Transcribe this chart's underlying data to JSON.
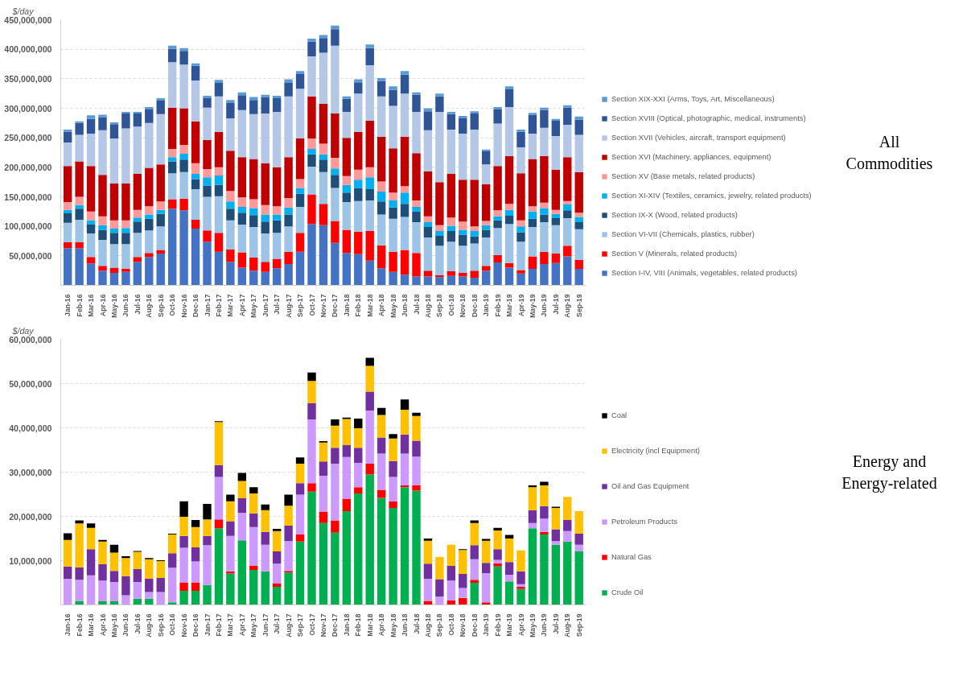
{
  "chart_data": [
    {
      "type": "bar",
      "annotations": [
        "All Commodities"
      ],
      "ylabel": "$/day",
      "stacked": true,
      "grid": "y",
      "legend": "right",
      "categories": [
        "Jan-16",
        "Feb-16",
        "Mar-16",
        "Apr-16",
        "May-16",
        "Jun-16",
        "Jul-16",
        "Aug-16",
        "Sep-16",
        "Oct-16",
        "Nov-16",
        "Dec-16",
        "Jan-17",
        "Feb-17",
        "Mar-17",
        "Apr-17",
        "May-17",
        "Jun-17",
        "Jul-17",
        "Aug-17",
        "Sep-17",
        "Oct-17",
        "Nov-17",
        "Dec-17",
        "Jan-18",
        "Feb-18",
        "Mar-18",
        "Apr-18",
        "May-18",
        "Jun-18",
        "Jul-18",
        "Aug-18",
        "Sep-18",
        "Oct-18",
        "Nov-18",
        "Dec-18",
        "Jan-19",
        "Feb-19",
        "Mar-19",
        "Apr-19",
        "May-19",
        "Jun-19",
        "Jul-19",
        "Aug-19",
        "Sep-19"
      ],
      "ylim": [
        0,
        450000000.0
      ],
      "yticks": [
        {
          "value": 50000000.0,
          "label": "50,000,000"
        },
        {
          "value": 100000000.0,
          "label": "100,000,000"
        },
        {
          "value": 150000000.0,
          "label": "150,000,000"
        },
        {
          "value": 200000000.0,
          "label": "200,000,000"
        },
        {
          "value": 250000000.0,
          "label": "250,000,000"
        },
        {
          "value": 300000000.0,
          "label": "300,000,000"
        },
        {
          "value": 350000000.0,
          "label": "350,000,000"
        },
        {
          "value": 400000000.0,
          "label": "400,000,000"
        },
        {
          "value": 450000000.0,
          "label": "450,000,000"
        }
      ],
      "series": [
        {
          "name": "Section I-IV, VIII (Animals, vegetables, related products)",
          "color": "#4472c4",
          "values": [
            63000000.0,
            63000000.0,
            37000000.0,
            25000000.0,
            21000000.0,
            23000000.0,
            40000000.0,
            48000000.0,
            54000000.0,
            130000000.0,
            127000000.0,
            96000000.0,
            74000000.0,
            57000000.0,
            40000000.0,
            30000000.0,
            25000000.0,
            23000000.0,
            29000000.0,
            36000000.0,
            57000000.0,
            104000000.0,
            102000000.0,
            72000000.0,
            55000000.0,
            53000000.0,
            42000000.0,
            29000000.0,
            23000000.0,
            18000000.0,
            15000000.0,
            15000000.0,
            14000000.0,
            16000000.0,
            15000000.0,
            13000000.0,
            25000000.0,
            39000000.0,
            30000000.0,
            20000000.0,
            28000000.0,
            36000000.0,
            38000000.0,
            49000000.0,
            28000000.0
          ]
        },
        {
          "name": "Section V (Minerals, related products)",
          "color": "#ff0000",
          "values": [
            10000000.0,
            10000000.0,
            11000000.0,
            8000000.0,
            9000000.0,
            5000000.0,
            8000000.0,
            7000000.0,
            6000000.0,
            16000000.0,
            20000000.0,
            15000000.0,
            19000000.0,
            32000000.0,
            21000000.0,
            26000000.0,
            22000000.0,
            17000000.0,
            16000000.0,
            21000000.0,
            32000000.0,
            50000000.0,
            36000000.0,
            37000000.0,
            39000000.0,
            38000000.0,
            50000000.0,
            39000000.0,
            34000000.0,
            42000000.0,
            40000000.0,
            10000000.0,
            3000000.0,
            8000000.0,
            6000000.0,
            12000000.0,
            8000000.0,
            12000000.0,
            8000000.0,
            6000000.0,
            21000000.0,
            21000000.0,
            16000000.0,
            18000000.0,
            15000000.0
          ]
        },
        {
          "name": "Section VI-VII (Chemicals, plastics, rubber)",
          "color": "#9dc3e6",
          "values": [
            33000000.0,
            38000000.0,
            40000000.0,
            44000000.0,
            40000000.0,
            42000000.0,
            41000000.0,
            38000000.0,
            40000000.0,
            44000000.0,
            45000000.0,
            52000000.0,
            57000000.0,
            62000000.0,
            49000000.0,
            47000000.0,
            52000000.0,
            48000000.0,
            44000000.0,
            43000000.0,
            44000000.0,
            47000000.0,
            54000000.0,
            56000000.0,
            47000000.0,
            52000000.0,
            52000000.0,
            52000000.0,
            56000000.0,
            56000000.0,
            52000000.0,
            56000000.0,
            50000000.0,
            50000000.0,
            46000000.0,
            46000000.0,
            48000000.0,
            46000000.0,
            66000000.0,
            48000000.0,
            50000000.0,
            50000000.0,
            48000000.0,
            47000000.0,
            52000000.0
          ]
        },
        {
          "name": "Section IX-X (Wood, related products)",
          "color": "#1f4e79",
          "values": [
            16000000.0,
            19000000.0,
            15000000.0,
            17000000.0,
            19000000.0,
            19000000.0,
            19000000.0,
            20000000.0,
            21000000.0,
            20000000.0,
            21000000.0,
            17000000.0,
            19000000.0,
            19000000.0,
            20000000.0,
            20000000.0,
            20000000.0,
            20000000.0,
            21000000.0,
            20000000.0,
            22000000.0,
            21000000.0,
            21000000.0,
            22000000.0,
            16000000.0,
            22000000.0,
            19000000.0,
            22000000.0,
            19000000.0,
            22000000.0,
            18000000.0,
            18000000.0,
            17000000.0,
            18000000.0,
            19000000.0,
            12000000.0,
            13000000.0,
            13000000.0,
            14000000.0,
            16000000.0,
            14000000.0,
            13000000.0,
            12000000.0,
            13000000.0,
            12000000.0
          ]
        },
        {
          "name": "Section XI-XIV (Textiles, ceramics, jewelry, related products)",
          "color": "#00b0f0",
          "values": [
            6000000.0,
            6000000.0,
            7000000.0,
            8000000.0,
            7000000.0,
            8000000.0,
            7000000.0,
            7000000.0,
            7000000.0,
            7000000.0,
            10000000.0,
            9000000.0,
            14000000.0,
            16000000.0,
            12000000.0,
            10000000.0,
            12000000.0,
            12000000.0,
            10000000.0,
            12000000.0,
            10000000.0,
            9000000.0,
            9000000.0,
            11000000.0,
            13000000.0,
            14000000.0,
            20000000.0,
            17000000.0,
            12000000.0,
            19000000.0,
            8000000.0,
            8000000.0,
            8000000.0,
            9000000.0,
            8000000.0,
            9000000.0,
            8000000.0,
            7000000.0,
            10000000.0,
            10000000.0,
            12000000.0,
            11000000.0,
            7000000.0,
            10000000.0,
            9000000.0
          ]
        },
        {
          "name": "Section XV (Base metals, related products)",
          "color": "#ff9999",
          "values": [
            13000000.0,
            14000000.0,
            15000000.0,
            15000000.0,
            14000000.0,
            13000000.0,
            13000000.0,
            14000000.0,
            14000000.0,
            14000000.0,
            15000000.0,
            18000000.0,
            14000000.0,
            14000000.0,
            18000000.0,
            16000000.0,
            15000000.0,
            16000000.0,
            14000000.0,
            16000000.0,
            15000000.0,
            18000000.0,
            18000000.0,
            18000000.0,
            15000000.0,
            17000000.0,
            17000000.0,
            17000000.0,
            13000000.0,
            11000000.0,
            11000000.0,
            10000000.0,
            10000000.0,
            14000000.0,
            14000000.0,
            8000000.0,
            7000000.0,
            10000000.0,
            10000000.0,
            10000000.0,
            9000000.0,
            9000000.0,
            7000000.0,
            6000000.0,
            7000000.0
          ]
        },
        {
          "name": "Section XVI (Machinery, appliances, equipment)",
          "color": "#c00000",
          "values": [
            61000000.0,
            60000000.0,
            77000000.0,
            70000000.0,
            63000000.0,
            63000000.0,
            61000000.0,
            65000000.0,
            63000000.0,
            70000000.0,
            62000000.0,
            71000000.0,
            49000000.0,
            60000000.0,
            68000000.0,
            68000000.0,
            68000000.0,
            71000000.0,
            66000000.0,
            69000000.0,
            69000000.0,
            71000000.0,
            68000000.0,
            75000000.0,
            65000000.0,
            64000000.0,
            79000000.0,
            76000000.0,
            75000000.0,
            84000000.0,
            80000000.0,
            76000000.0,
            73000000.0,
            74000000.0,
            71000000.0,
            79000000.0,
            62000000.0,
            75000000.0,
            81000000.0,
            80000000.0,
            80000000.0,
            79000000.0,
            68000000.0,
            74000000.0,
            69000000.0
          ]
        },
        {
          "name": "Section XVII (Vehicles, aircraft, transport equipment)",
          "color": "#b4c7e7",
          "values": [
            40000000.0,
            45000000.0,
            55000000.0,
            76000000.0,
            76000000.0,
            93000000.0,
            80000000.0,
            76000000.0,
            85000000.0,
            77000000.0,
            74000000.0,
            69000000.0,
            55000000.0,
            60000000.0,
            55000000.0,
            80000000.0,
            76000000.0,
            84000000.0,
            94000000.0,
            103000000.0,
            84000000.0,
            68000000.0,
            86000000.0,
            115000000.0,
            44000000.0,
            65000000.0,
            94000000.0,
            68000000.0,
            72000000.0,
            73000000.0,
            70000000.0,
            70000000.0,
            119000000.0,
            75000000.0,
            78000000.0,
            85000000.0,
            34000000.0,
            72000000.0,
            83000000.0,
            44000000.0,
            43000000.0,
            48000000.0,
            57000000.0,
            55000000.0,
            63000000.0
          ]
        },
        {
          "name": "Section XVIII (Optical, photographic, medical, instruments)",
          "color": "#2f5597",
          "values": [
            18000000.0,
            20000000.0,
            25000000.0,
            22000000.0,
            24000000.0,
            25000000.0,
            22000000.0,
            23000000.0,
            23000000.0,
            23000000.0,
            23000000.0,
            25000000.0,
            16000000.0,
            23000000.0,
            26000000.0,
            25000000.0,
            24000000.0,
            28000000.0,
            23000000.0,
            23000000.0,
            25000000.0,
            25000000.0,
            25000000.0,
            28000000.0,
            22000000.0,
            19000000.0,
            29000000.0,
            26000000.0,
            27000000.0,
            32000000.0,
            29000000.0,
            32000000.0,
            26000000.0,
            26000000.0,
            26000000.0,
            27000000.0,
            22000000.0,
            24000000.0,
            30000000.0,
            26000000.0,
            32000000.0,
            30000000.0,
            26000000.0,
            29000000.0,
            26000000.0
          ]
        },
        {
          "name": "Section XIX-XXI (Arms, Toys, Art, Miscellaneous)",
          "color": "#5b9bd5",
          "values": [
            4000000.0,
            3000000.0,
            6000000.0,
            4000000.0,
            3000000.0,
            3000000.0,
            3000000.0,
            4000000.0,
            4000000.0,
            5000000.0,
            5000000.0,
            4000000.0,
            4000000.0,
            5000000.0,
            5000000.0,
            5000000.0,
            5000000.0,
            4000000.0,
            4000000.0,
            6000000.0,
            5000000.0,
            5000000.0,
            5000000.0,
            6000000.0,
            4000000.0,
            5000000.0,
            6000000.0,
            5000000.0,
            6000000.0,
            6000000.0,
            4000000.0,
            5000000.0,
            5000000.0,
            4000000.0,
            4000000.0,
            4000000.0,
            3000000.0,
            4000000.0,
            5000000.0,
            4000000.0,
            3000000.0,
            4000000.0,
            3000000.0,
            4000000.0,
            5000000.0
          ]
        }
      ]
    },
    {
      "type": "bar",
      "annotations": [
        "Energy and Energy-related"
      ],
      "ylabel": "$/day",
      "stacked": true,
      "grid": "y",
      "legend": "right",
      "categories": [
        "Jan-16",
        "Feb-16",
        "Mar-16",
        "Apr-16",
        "May-16",
        "Jun-16",
        "Jul-16",
        "Aug-16",
        "Sep-16",
        "Oct-16",
        "Nov-16",
        "Dec-16",
        "Jan-17",
        "Feb-17",
        "Mar-17",
        "Apr-17",
        "May-17",
        "Jun-17",
        "Jul-17",
        "Aug-17",
        "Sep-17",
        "Oct-17",
        "Nov-17",
        "Dec-17",
        "Jan-18",
        "Feb-18",
        "Mar-18",
        "Apr-18",
        "May-18",
        "Jun-18",
        "Jul-18",
        "Aug-18",
        "Sep-18",
        "Oct-18",
        "Nov-18",
        "Dec-18",
        "Jan-19",
        "Feb-19",
        "Mar-19",
        "Apr-19",
        "May-19",
        "Jun-19",
        "Jul-19",
        "Aug-19",
        "Sep-19"
      ],
      "ylim": [
        0,
        60000000.0
      ],
      "yticks": [
        {
          "value": 10000000.0,
          "label": "10,000,000"
        },
        {
          "value": 20000000.0,
          "label": "20,000,000"
        },
        {
          "value": 30000000.0,
          "label": "30,000,000"
        },
        {
          "value": 40000000.0,
          "label": "40,000,000"
        },
        {
          "value": 50000000.0,
          "label": "50,000,000"
        },
        {
          "value": 60000000.0,
          "label": "60,000,000"
        }
      ],
      "series": [
        {
          "name": "Crude Oil",
          "color": "#00b050",
          "values": [
            0,
            900000.0,
            0,
            800000.0,
            800000.0,
            0,
            1400000.0,
            1400000.0,
            0,
            600000.0,
            3200000.0,
            3200000.0,
            4500000.0,
            17300000.0,
            7100000.0,
            14600000.0,
            7900000.0,
            7600000.0,
            4100000.0,
            7300000.0,
            14300000.0,
            25600000.0,
            18500000.0,
            16300000.0,
            21200000.0,
            25200000.0,
            29500000.0,
            24200000.0,
            21900000.0,
            26600000.0,
            25800000.0,
            0,
            0,
            0,
            0,
            5000000.0,
            0,
            8700000.0,
            5300000.0,
            3600000.0,
            17300000.0,
            15900000.0,
            13600000.0,
            14300000.0,
            12200000.0
          ]
        },
        {
          "name": "Natural Gas",
          "color": "#ff0000",
          "values": [
            0,
            0,
            0,
            0,
            0,
            0,
            0,
            0,
            0,
            0,
            1900000.0,
            1900000.0,
            0,
            2000000.0,
            500000.0,
            0,
            900000.0,
            0,
            800000.0,
            400000.0,
            1600000.0,
            1900000.0,
            2600000.0,
            2800000.0,
            2800000.0,
            1400000.0,
            2400000.0,
            1800000.0,
            1500000.0,
            400000.0,
            1200000.0,
            900000.0,
            0,
            1000000.0,
            1600000.0,
            700000.0,
            600000.0,
            700000.0,
            0,
            500000.0,
            0,
            600000.0,
            0,
            0,
            0
          ]
        },
        {
          "name": "Petroleum Products",
          "color": "#cc99ff",
          "values": [
            5900000.0,
            4800000.0,
            6700000.0,
            4700000.0,
            4400000.0,
            2200000.0,
            3800000.0,
            1500000.0,
            2900000.0,
            7800000.0,
            7800000.0,
            4700000.0,
            9000000.0,
            9600000.0,
            8000000.0,
            6200000.0,
            8800000.0,
            6000000.0,
            4400000.0,
            6700000.0,
            9000000.0,
            14400000.0,
            8100000.0,
            12800000.0,
            9400000.0,
            5500000.0,
            12000000.0,
            8200000.0,
            5500000.0,
            7200000.0,
            6500000.0,
            5000000.0,
            1900000.0,
            4500000.0,
            2200000.0,
            4600000.0,
            6600000.0,
            800000.0,
            1500000.0,
            600000.0,
            1200000.0,
            3000000.0,
            800000.0,
            2400000.0,
            1400000.0
          ]
        },
        {
          "name": "Oil and Gas Equipment",
          "color": "#7030a0",
          "values": [
            2800000.0,
            2800000.0,
            5900000.0,
            3700000.0,
            2500000.0,
            4300000.0,
            2900000.0,
            3000000.0,
            3200000.0,
            3300000.0,
            2700000.0,
            3200000.0,
            2100000.0,
            2700000.0,
            3300000.0,
            3300000.0,
            3100000.0,
            2900000.0,
            2800000.0,
            3500000.0,
            2600000.0,
            3700000.0,
            3200000.0,
            3600000.0,
            2700000.0,
            3400000.0,
            4300000.0,
            3600000.0,
            3600000.0,
            4300000.0,
            3600000.0,
            3400000.0,
            3900000.0,
            3300000.0,
            3200000.0,
            3200000.0,
            2300000.0,
            2400000.0,
            2900000.0,
            2900000.0,
            2900000.0,
            2800000.0,
            2700000.0,
            2500000.0,
            2500000.0
          ]
        },
        {
          "name": "Electricity (incl Equipment)",
          "color": "#ffc000",
          "values": [
            6000000.0,
            9900000.0,
            4800000.0,
            5100000.0,
            4100000.0,
            4100000.0,
            3900000.0,
            4400000.0,
            3800000.0,
            4200000.0,
            4300000.0,
            4600000.0,
            3700000.0,
            9700000.0,
            4500000.0,
            3900000.0,
            4500000.0,
            4900000.0,
            4600000.0,
            4500000.0,
            4400000.0,
            5000000.0,
            4300000.0,
            5000000.0,
            5900000.0,
            4400000.0,
            5800000.0,
            5100000.0,
            5100000.0,
            5600000.0,
            5600000.0,
            5200000.0,
            5000000.0,
            4800000.0,
            5400000.0,
            5000000.0,
            5000000.0,
            4200000.0,
            5300000.0,
            4700000.0,
            5200000.0,
            4700000.0,
            4800000.0,
            5200000.0,
            5100000.0
          ]
        },
        {
          "name": "Coal",
          "color": "#000000",
          "values": [
            1500000.0,
            700000.0,
            1000000.0,
            400000.0,
            1800000.0,
            400000.0,
            200000.0,
            300000.0,
            200000.0,
            200000.0,
            3500000.0,
            1600000.0,
            3500000.0,
            200000.0,
            1500000.0,
            1800000.0,
            1400000.0,
            1300000.0,
            500000.0,
            2500000.0,
            1400000.0,
            1900000.0,
            300000.0,
            1400000.0,
            300000.0,
            2200000.0,
            1800000.0,
            1600000.0,
            1000000.0,
            2300000.0,
            700000.0,
            500000.0,
            0,
            0,
            200000.0,
            600000.0,
            400000.0,
            600000.0,
            800000.0,
            0,
            400000.0,
            800000.0,
            300000.0,
            0,
            0
          ]
        }
      ]
    }
  ]
}
